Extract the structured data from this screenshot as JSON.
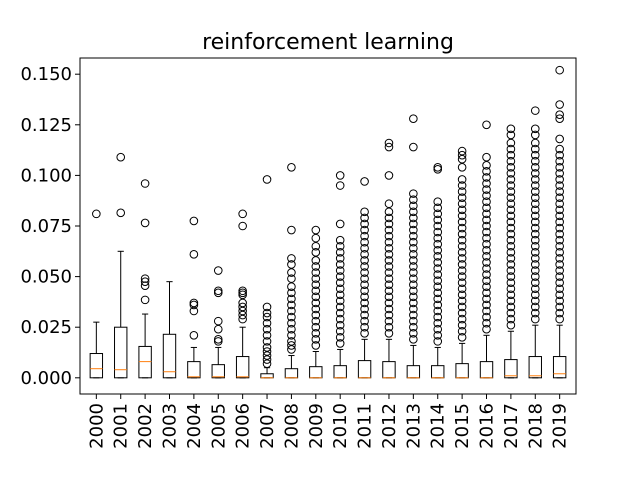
{
  "chart_data": {
    "type": "box",
    "title": "reinforcement learning",
    "xlabel": "",
    "ylabel": "",
    "ylim": [
      -0.008,
      0.158
    ],
    "yticks": [
      0.0,
      0.025,
      0.05,
      0.075,
      0.1,
      0.125,
      0.15
    ],
    "ytick_labels": [
      "0.000",
      "0.025",
      "0.050",
      "0.075",
      "0.100",
      "0.125",
      "0.150"
    ],
    "grid": false,
    "colors": {
      "box": "#000000",
      "median": "#ff7f0e",
      "flier": "#000000"
    },
    "categories": [
      "2000",
      "2001",
      "2002",
      "2003",
      "2004",
      "2005",
      "2006",
      "2007",
      "2008",
      "2009",
      "2010",
      "2011",
      "2012",
      "2013",
      "2014",
      "2015",
      "2016",
      "2017",
      "2018",
      "2019"
    ],
    "boxes": [
      {
        "whislo": 0.0,
        "q1": 0.0,
        "med": 0.0045,
        "q3": 0.012,
        "whishi": 0.0275,
        "fliers": [
          0.081
        ]
      },
      {
        "whislo": 0.0,
        "q1": 0.0,
        "med": 0.004,
        "q3": 0.025,
        "whishi": 0.0625,
        "fliers": [
          0.0815,
          0.109
        ]
      },
      {
        "whislo": 0.0,
        "q1": 0.0,
        "med": 0.008,
        "q3": 0.0155,
        "whishi": 0.0315,
        "fliers": [
          0.0385,
          0.0455,
          0.0475,
          0.049,
          0.0765,
          0.096
        ]
      },
      {
        "whislo": 0.0,
        "q1": 0.0,
        "med": 0.003,
        "q3": 0.0215,
        "whishi": 0.0475,
        "fliers": []
      },
      {
        "whislo": 0.0,
        "q1": 0.0,
        "med": 0.0005,
        "q3": 0.008,
        "whishi": 0.015,
        "fliers": [
          0.021,
          0.033,
          0.036,
          0.037,
          0.061,
          0.0775
        ]
      },
      {
        "whislo": 0.0,
        "q1": 0.0,
        "med": 0.0005,
        "q3": 0.0065,
        "whishi": 0.015,
        "fliers": [
          0.018,
          0.019,
          0.024,
          0.028,
          0.042,
          0.043,
          0.053
        ]
      },
      {
        "whislo": 0.0,
        "q1": 0.0,
        "med": 0.0005,
        "q3": 0.0105,
        "whishi": 0.025,
        "fliers": [
          0.029,
          0.031,
          0.033,
          0.035,
          0.037,
          0.041,
          0.042,
          0.043,
          0.075,
          0.081
        ]
      },
      {
        "whislo": 0.0,
        "q1": 0.0,
        "med": 0.0,
        "q3": 0.002,
        "whishi": 0.005,
        "fliers": [
          0.007,
          0.009,
          0.011,
          0.013,
          0.015,
          0.018,
          0.021,
          0.024,
          0.027,
          0.03,
          0.032,
          0.035,
          0.098
        ]
      },
      {
        "whislo": 0.0,
        "q1": 0.0,
        "med": 0.0,
        "q3": 0.0045,
        "whishi": 0.011,
        "fliers": [
          0.014,
          0.016,
          0.018,
          0.021,
          0.024,
          0.027,
          0.03,
          0.033,
          0.036,
          0.039,
          0.042,
          0.045,
          0.049,
          0.052,
          0.056,
          0.059,
          0.073,
          0.104
        ]
      },
      {
        "whislo": 0.0,
        "q1": 0.0,
        "med": 0.0,
        "q3": 0.0055,
        "whishi": 0.013,
        "fliers": [
          0.016,
          0.019,
          0.022,
          0.025,
          0.028,
          0.031,
          0.034,
          0.037,
          0.04,
          0.043,
          0.046,
          0.049,
          0.052,
          0.055,
          0.058,
          0.062,
          0.065,
          0.069,
          0.073
        ]
      },
      {
        "whislo": 0.0,
        "q1": 0.0,
        "med": 0.0,
        "q3": 0.006,
        "whishi": 0.014,
        "fliers": [
          0.017,
          0.02,
          0.023,
          0.026,
          0.029,
          0.032,
          0.035,
          0.038,
          0.041,
          0.044,
          0.047,
          0.05,
          0.053,
          0.056,
          0.059,
          0.062,
          0.065,
          0.068,
          0.076,
          0.095,
          0.1
        ]
      },
      {
        "whislo": 0.0,
        "q1": 0.0,
        "med": 0.0,
        "q3": 0.0085,
        "whishi": 0.019,
        "fliers": [
          0.022,
          0.025,
          0.028,
          0.031,
          0.034,
          0.037,
          0.04,
          0.043,
          0.046,
          0.049,
          0.052,
          0.055,
          0.058,
          0.061,
          0.064,
          0.067,
          0.07,
          0.073,
          0.076,
          0.079,
          0.082,
          0.097
        ]
      },
      {
        "whislo": 0.0,
        "q1": 0.0,
        "med": 0.0,
        "q3": 0.008,
        "whishi": 0.019,
        "fliers": [
          0.022,
          0.025,
          0.028,
          0.031,
          0.034,
          0.037,
          0.04,
          0.043,
          0.046,
          0.049,
          0.052,
          0.055,
          0.058,
          0.061,
          0.064,
          0.067,
          0.07,
          0.073,
          0.076,
          0.079,
          0.082,
          0.086,
          0.1,
          0.114,
          0.116
        ]
      },
      {
        "whislo": 0.0,
        "q1": 0.0,
        "med": 0.0,
        "q3": 0.006,
        "whishi": 0.016,
        "fliers": [
          0.019,
          0.022,
          0.025,
          0.028,
          0.031,
          0.034,
          0.037,
          0.04,
          0.043,
          0.046,
          0.049,
          0.052,
          0.055,
          0.058,
          0.061,
          0.064,
          0.067,
          0.07,
          0.073,
          0.076,
          0.079,
          0.082,
          0.085,
          0.088,
          0.091,
          0.114,
          0.128
        ]
      },
      {
        "whislo": 0.0,
        "q1": 0.0,
        "med": 0.0,
        "q3": 0.006,
        "whishi": 0.015,
        "fliers": [
          0.018,
          0.021,
          0.024,
          0.027,
          0.03,
          0.033,
          0.036,
          0.039,
          0.042,
          0.045,
          0.048,
          0.051,
          0.054,
          0.057,
          0.06,
          0.063,
          0.066,
          0.069,
          0.072,
          0.075,
          0.078,
          0.081,
          0.084,
          0.087,
          0.103,
          0.104
        ]
      },
      {
        "whislo": 0.0,
        "q1": 0.0,
        "med": 0.0,
        "q3": 0.007,
        "whishi": 0.017,
        "fliers": [
          0.02,
          0.023,
          0.026,
          0.029,
          0.032,
          0.035,
          0.038,
          0.041,
          0.044,
          0.047,
          0.05,
          0.053,
          0.056,
          0.059,
          0.062,
          0.065,
          0.068,
          0.071,
          0.074,
          0.077,
          0.08,
          0.083,
          0.086,
          0.089,
          0.092,
          0.095,
          0.098,
          0.104,
          0.108,
          0.11,
          0.112
        ]
      },
      {
        "whislo": 0.0,
        "q1": 0.0,
        "med": 0.0,
        "q3": 0.008,
        "whishi": 0.021,
        "fliers": [
          0.024,
          0.027,
          0.03,
          0.033,
          0.036,
          0.039,
          0.042,
          0.045,
          0.048,
          0.051,
          0.054,
          0.057,
          0.06,
          0.063,
          0.066,
          0.069,
          0.072,
          0.075,
          0.078,
          0.081,
          0.084,
          0.087,
          0.09,
          0.093,
          0.096,
          0.099,
          0.102,
          0.105,
          0.109,
          0.125
        ]
      },
      {
        "whislo": 0.0,
        "q1": 0.0,
        "med": 0.001,
        "q3": 0.009,
        "whishi": 0.023,
        "fliers": [
          0.026,
          0.029,
          0.032,
          0.035,
          0.038,
          0.041,
          0.044,
          0.047,
          0.05,
          0.053,
          0.056,
          0.059,
          0.062,
          0.065,
          0.068,
          0.071,
          0.074,
          0.077,
          0.08,
          0.083,
          0.086,
          0.089,
          0.092,
          0.095,
          0.098,
          0.101,
          0.104,
          0.107,
          0.11,
          0.113,
          0.116,
          0.12,
          0.123
        ]
      },
      {
        "whislo": 0.0,
        "q1": 0.0,
        "med": 0.001,
        "q3": 0.0105,
        "whishi": 0.026,
        "fliers": [
          0.029,
          0.032,
          0.035,
          0.038,
          0.041,
          0.044,
          0.047,
          0.05,
          0.053,
          0.056,
          0.059,
          0.062,
          0.065,
          0.068,
          0.071,
          0.074,
          0.077,
          0.08,
          0.083,
          0.086,
          0.089,
          0.092,
          0.095,
          0.098,
          0.101,
          0.104,
          0.107,
          0.11,
          0.113,
          0.116,
          0.12,
          0.123,
          0.132
        ]
      },
      {
        "whislo": 0.0,
        "q1": 0.0,
        "med": 0.002,
        "q3": 0.0105,
        "whishi": 0.026,
        "fliers": [
          0.029,
          0.032,
          0.035,
          0.038,
          0.041,
          0.044,
          0.047,
          0.05,
          0.053,
          0.056,
          0.059,
          0.062,
          0.065,
          0.068,
          0.071,
          0.074,
          0.077,
          0.08,
          0.083,
          0.086,
          0.089,
          0.092,
          0.095,
          0.098,
          0.101,
          0.104,
          0.107,
          0.11,
          0.113,
          0.118,
          0.128,
          0.13,
          0.135,
          0.152
        ]
      }
    ]
  }
}
